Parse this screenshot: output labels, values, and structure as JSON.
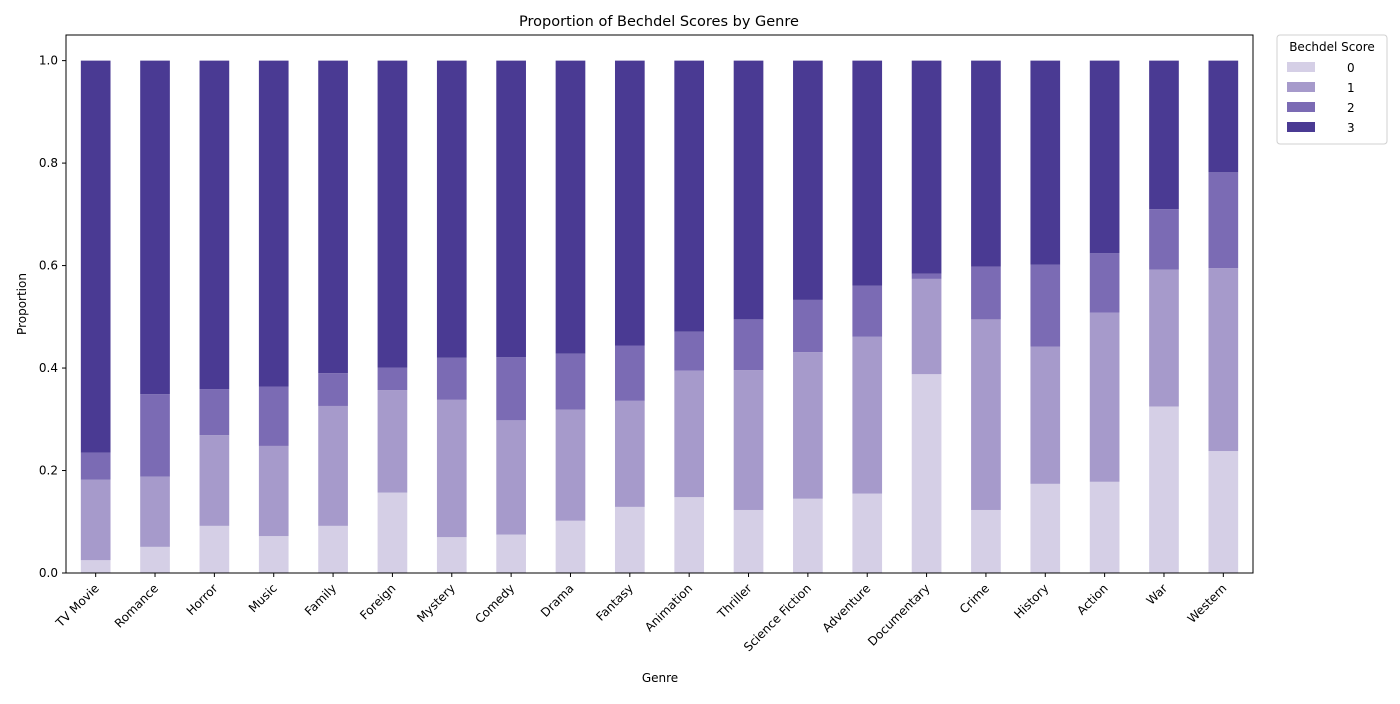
{
  "chart_data": {
    "type": "bar",
    "stacked": true,
    "title": "Proportion of Bechdel Scores by Genre",
    "xlabel": "Genre",
    "ylabel": "Proportion",
    "ylim": [
      0,
      1.05
    ],
    "yticks": [
      "0.0",
      "0.2",
      "0.4",
      "0.6",
      "0.8",
      "1.0"
    ],
    "ytick_values": [
      0,
      0.2,
      0.4,
      0.6,
      0.8,
      1.0
    ],
    "grid": false,
    "legend_placement": "outside-top-right",
    "legend_title": "Bechdel Score",
    "categories": [
      "TV Movie",
      "Romance",
      "Horror",
      "Music",
      "Family",
      "Foreign",
      "Mystery",
      "Comedy",
      "Drama",
      "Fantasy",
      "Animation",
      "Thriller",
      "Science Fiction",
      "Adventure",
      "Documentary",
      "Crime",
      "History",
      "Action",
      "War",
      "Western"
    ],
    "series": [
      {
        "name": "0",
        "color": "#d5cfe6",
        "values": [
          0.025,
          0.051,
          0.092,
          0.072,
          0.092,
          0.157,
          0.07,
          0.075,
          0.102,
          0.129,
          0.148,
          0.123,
          0.145,
          0.155,
          0.388,
          0.123,
          0.174,
          0.178,
          0.325,
          0.238
        ]
      },
      {
        "name": "1",
        "color": "#a69acb",
        "values": [
          0.157,
          0.137,
          0.177,
          0.176,
          0.234,
          0.2,
          0.268,
          0.223,
          0.217,
          0.207,
          0.247,
          0.273,
          0.286,
          0.306,
          0.186,
          0.372,
          0.268,
          0.33,
          0.267,
          0.357
        ]
      },
      {
        "name": "2",
        "color": "#7b6bb4",
        "values": [
          0.053,
          0.161,
          0.09,
          0.116,
          0.064,
          0.044,
          0.082,
          0.123,
          0.109,
          0.108,
          0.076,
          0.099,
          0.102,
          0.1,
          0.01,
          0.103,
          0.16,
          0.116,
          0.118,
          0.187
        ]
      },
      {
        "name": "3",
        "color": "#4a3a93",
        "values": [
          0.765,
          0.651,
          0.641,
          0.636,
          0.61,
          0.599,
          0.58,
          0.579,
          0.572,
          0.556,
          0.529,
          0.505,
          0.467,
          0.439,
          0.416,
          0.402,
          0.398,
          0.376,
          0.29,
          0.218
        ]
      }
    ]
  }
}
